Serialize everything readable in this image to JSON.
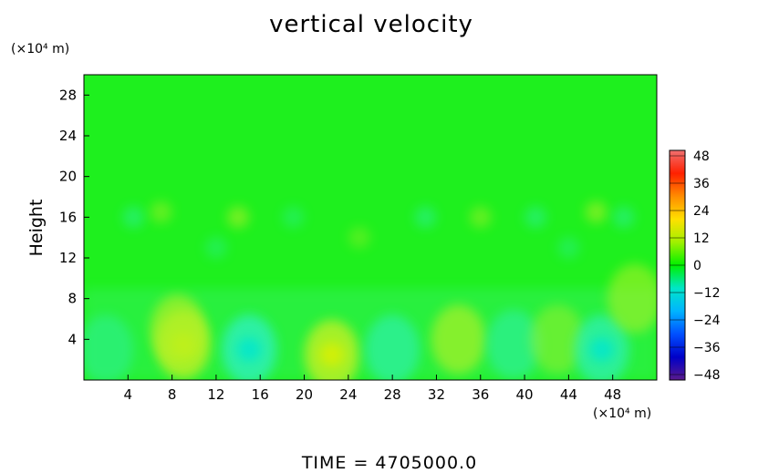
{
  "chart_data": {
    "type": "heatmap",
    "title": "vertical velocity",
    "ylabel": "Height",
    "xlabel": "",
    "x_unit": "(×10⁴ m)",
    "y_unit": "(×10⁴ m)",
    "footer": "TIME  =  4705000.0",
    "xlim": [
      0,
      52
    ],
    "ylim": [
      0,
      30
    ],
    "x_ticks": [
      4,
      8,
      12,
      16,
      20,
      24,
      28,
      32,
      36,
      40,
      44,
      48
    ],
    "y_ticks": [
      4,
      8,
      12,
      16,
      20,
      24,
      28
    ],
    "colorbar": {
      "ticks": [
        48,
        36,
        24,
        12,
        0,
        -12,
        -24,
        -36,
        -48
      ],
      "range": [
        -48,
        48
      ],
      "colors": [
        "#5a1a8c",
        "#0000c8",
        "#0050ff",
        "#00b4ff",
        "#00e6c8",
        "#00f000",
        "#a0f000",
        "#ffe000",
        "#ff8c00",
        "#ff2000",
        "#f07070"
      ]
    },
    "features": [
      {
        "x": 9,
        "y": 3.5,
        "value": 8
      },
      {
        "x": 8.5,
        "y": 5,
        "value": 6
      },
      {
        "x": 15,
        "y": 3,
        "value": -8
      },
      {
        "x": 22.5,
        "y": 2.5,
        "value": 8
      },
      {
        "x": 28,
        "y": 3,
        "value": -6
      },
      {
        "x": 34,
        "y": 4,
        "value": 6
      },
      {
        "x": 39,
        "y": 3.5,
        "value": -5
      },
      {
        "x": 43,
        "y": 4,
        "value": 4
      },
      {
        "x": 47,
        "y": 3,
        "value": -7
      },
      {
        "x": 50,
        "y": 8,
        "value": 5
      },
      {
        "x": 2,
        "y": 3,
        "value": -4
      },
      {
        "x": 4.5,
        "y": 16,
        "value": -4
      },
      {
        "x": 7,
        "y": 16.5,
        "value": 4
      },
      {
        "x": 14,
        "y": 16,
        "value": 5
      },
      {
        "x": 19,
        "y": 16,
        "value": -3
      },
      {
        "x": 31,
        "y": 16,
        "value": -4
      },
      {
        "x": 36,
        "y": 16,
        "value": 4
      },
      {
        "x": 41,
        "y": 16,
        "value": -4
      },
      {
        "x": 46.5,
        "y": 16.5,
        "value": 5
      },
      {
        "x": 49,
        "y": 16,
        "value": -4
      },
      {
        "x": 25,
        "y": 14,
        "value": 3
      },
      {
        "x": 12,
        "y": 13,
        "value": -3
      },
      {
        "x": 44,
        "y": 13,
        "value": -3
      }
    ]
  }
}
